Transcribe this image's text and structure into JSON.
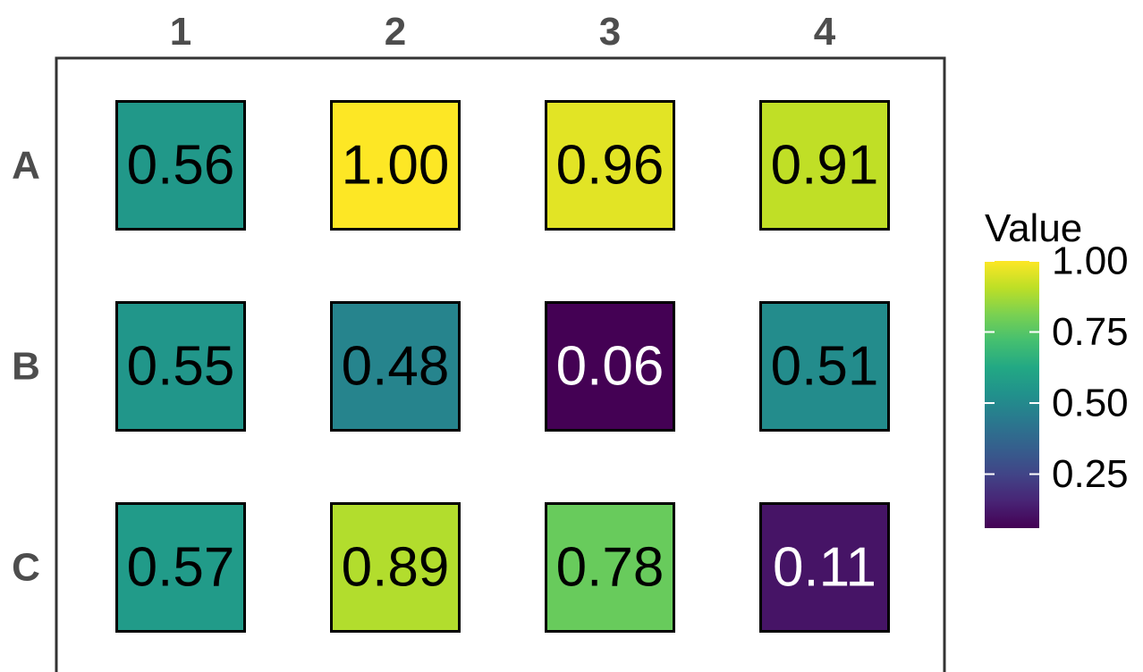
{
  "chart_data": {
    "type": "heatmap",
    "columns": [
      "1",
      "2",
      "3",
      "4"
    ],
    "rows": [
      "A",
      "B",
      "C"
    ],
    "values": [
      [
        0.56,
        1.0,
        0.96,
        0.91
      ],
      [
        0.55,
        0.48,
        0.06,
        0.51
      ],
      [
        0.57,
        0.89,
        0.78,
        0.11
      ]
    ],
    "labels": [
      [
        "0.56",
        "1.00",
        "0.96",
        "0.91"
      ],
      [
        "0.55",
        "0.48",
        "0.06",
        "0.51"
      ],
      [
        "0.57",
        "0.89",
        "0.78",
        "0.11"
      ]
    ],
    "colorscale": "viridis",
    "color_range": [
      0.06,
      1.0
    ],
    "legend": {
      "title": "Value",
      "ticks": [
        0.25,
        0.5,
        0.75,
        1.0
      ],
      "tick_labels": [
        "0.25",
        "0.50",
        "0.75",
        "1.00"
      ],
      "placement": "right"
    },
    "light_text_color": "#ffffff",
    "dark_text_color": "#000000",
    "panel_border_color": "#333333",
    "cell_border_color": "#000000"
  }
}
